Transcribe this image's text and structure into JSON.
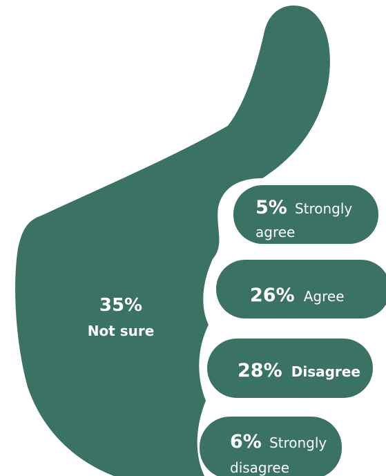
{
  "chart_data": {
    "type": "pie",
    "categories": [
      "Strongly agree",
      "Agree",
      "Not sure",
      "Disagree",
      "Strongly disagree"
    ],
    "values": [
      5,
      26,
      35,
      28,
      6
    ],
    "unit": "%",
    "color": "#3a7264",
    "labels": {
      "strongly_agree": {
        "value": "5%",
        "label_line1": "Strongly",
        "label_line2": "agree"
      },
      "agree": {
        "value": "26%",
        "label": "Agree"
      },
      "not_sure": {
        "value": "35%",
        "label": "Not sure"
      },
      "disagree": {
        "value": "28%",
        "label": "Disagree"
      },
      "strongly_disagree": {
        "value": "6%",
        "label_line1": "Strongly",
        "label_line2": "disagree"
      }
    }
  },
  "icons": {
    "main_shape": "thumbs-up-icon"
  }
}
